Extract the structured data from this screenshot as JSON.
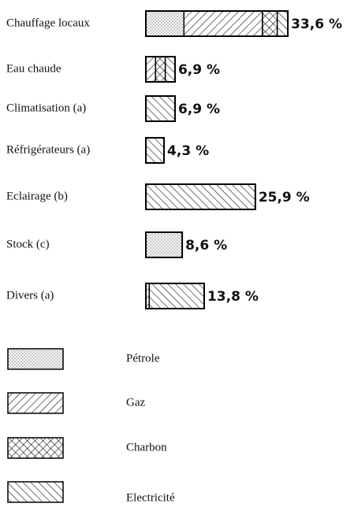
{
  "chart_data": {
    "type": "bar",
    "orientation": "horizontal",
    "stacked": true,
    "categories": [
      "Chauffage locaux",
      "Eau chaude",
      "Climatisation (a)",
      "Réfrigérateurs (a)",
      "Eclairage (b)",
      "Stock (c)",
      "Divers (a)"
    ],
    "series": [
      {
        "name": "Pétrole",
        "color": "#000000",
        "values": [
          9.0,
          0,
          0,
          0,
          0,
          8.6,
          0
        ]
      },
      {
        "name": "Gaz",
        "color": "#000000",
        "values": [
          18.6,
          2.3,
          0,
          0,
          0,
          0,
          0.8
        ]
      },
      {
        "name": "Charbon",
        "color": "#000000",
        "values": [
          3.5,
          2.3,
          0,
          0,
          0,
          0,
          0
        ]
      },
      {
        "name": "Electricité",
        "color": "#000000",
        "values": [
          2.5,
          2.3,
          6.9,
          4.3,
          25.9,
          0,
          13.0
        ]
      }
    ],
    "totals": [
      33.6,
      6.9,
      6.9,
      4.3,
      25.9,
      8.6,
      13.8
    ],
    "total_labels": [
      "33,6 %",
      "6,9 %",
      "6,9 %",
      "4,3 %",
      "25,9 %",
      "8,6 %",
      "13,8 %"
    ]
  }
}
